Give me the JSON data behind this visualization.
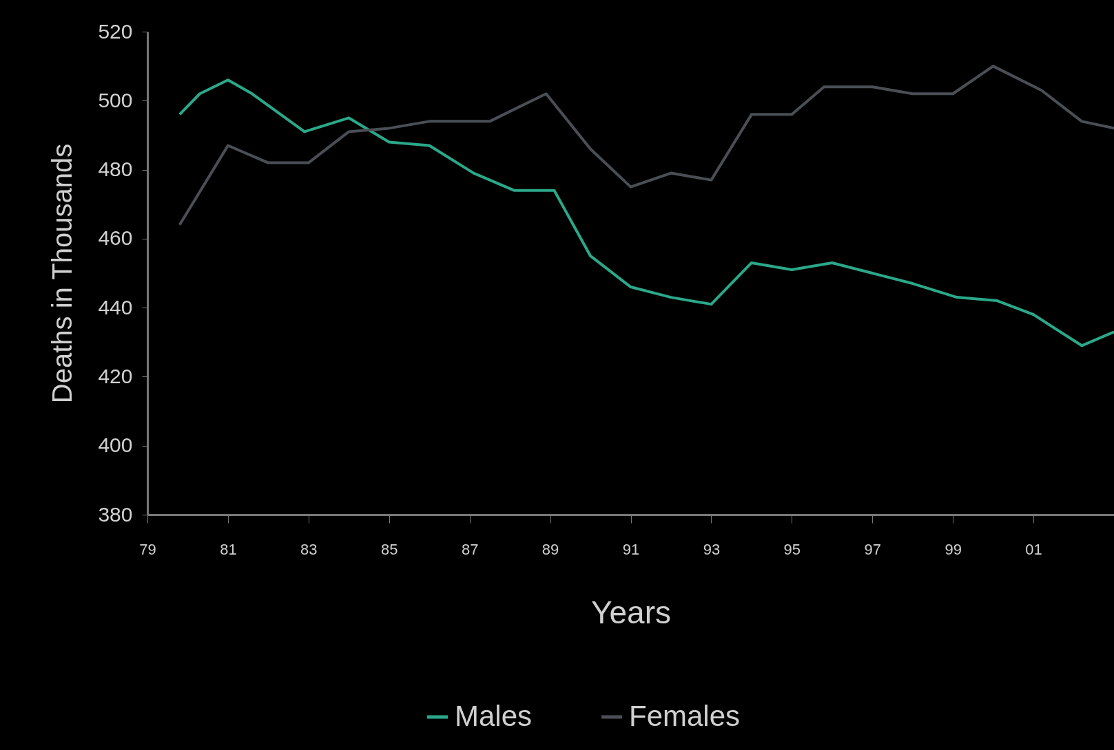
{
  "chart_data": {
    "type": "line",
    "xlabel": "Years",
    "ylabel": "Deaths in Thousands",
    "xlim": [
      1979,
      2003
    ],
    "ylim": [
      380,
      520
    ],
    "xticks": [
      {
        "value": 1979,
        "label": "79"
      },
      {
        "value": 1981,
        "label": "81"
      },
      {
        "value": 1983,
        "label": "83"
      },
      {
        "value": 1985,
        "label": "85"
      },
      {
        "value": 1987,
        "label": "87"
      },
      {
        "value": 1989,
        "label": "89"
      },
      {
        "value": 1991,
        "label": "91"
      },
      {
        "value": 1993,
        "label": "93"
      },
      {
        "value": 1995,
        "label": "95"
      },
      {
        "value": 1997,
        "label": "97"
      },
      {
        "value": 1999,
        "label": "99"
      },
      {
        "value": 2001,
        "label": "01"
      },
      {
        "value": 2003,
        "label": null
      }
    ],
    "yticks": [
      380,
      400,
      420,
      440,
      460,
      480,
      500,
      520
    ],
    "grid": false,
    "legend": "bottom",
    "marker": "none",
    "line_style": "solid",
    "series": [
      {
        "name": "Males",
        "color": "#2ba88a",
        "x": [
          1979.8,
          1980.3,
          1981,
          1981.6,
          1982.9,
          1984,
          1985,
          1986,
          1987.1,
          1988.1,
          1989.1,
          1990,
          1991,
          1992,
          1993,
          1994,
          1995,
          1996,
          1997,
          1998,
          1999.1,
          2000.1,
          2001,
          2002.2,
          2003
        ],
        "values": [
          496,
          502,
          506,
          502,
          491,
          495,
          488,
          487,
          479,
          474,
          474,
          455,
          446,
          443,
          441,
          453,
          451,
          453,
          450,
          447,
          443,
          442,
          438,
          429,
          433
        ]
      },
      {
        "name": "Females",
        "color": "#4a4f55",
        "x": [
          1979.8,
          1981,
          1982,
          1983,
          1984,
          1985,
          1986,
          1987.5,
          1988.9,
          1990,
          1991,
          1992,
          1993,
          1994,
          1995,
          1995.8,
          1997,
          1998,
          1999,
          2000,
          2001.2,
          2002.2,
          2003
        ],
        "values": [
          464,
          487,
          482,
          482,
          491,
          492,
          494,
          494,
          502,
          486,
          475,
          479,
          477,
          496,
          496,
          504,
          504,
          502,
          502,
          510,
          503,
          494,
          492
        ]
      }
    ]
  }
}
